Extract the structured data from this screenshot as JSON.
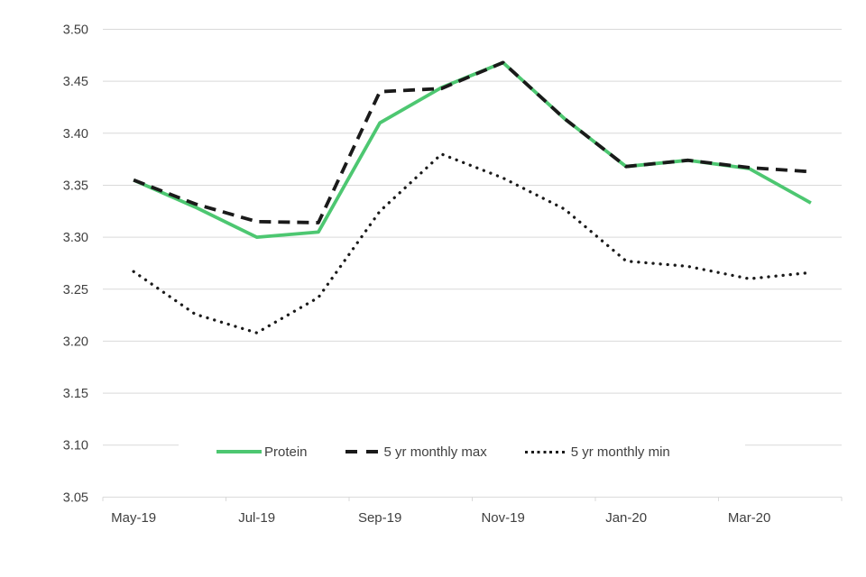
{
  "chart_data": {
    "type": "line",
    "title": "",
    "xlabel": "",
    "ylabel": "",
    "categories": [
      "May-19",
      "Jun-19",
      "Jul-19",
      "Aug-19",
      "Sep-19",
      "Oct-19",
      "Nov-19",
      "Dec-19",
      "Jan-20",
      "Feb-20",
      "Mar-20",
      "Apr-20"
    ],
    "series": [
      {
        "name": "Protein",
        "style": "solid",
        "color": "#4dc771",
        "values": [
          3.355,
          3.329,
          3.3,
          3.305,
          3.41,
          3.444,
          3.468,
          3.414,
          3.368,
          3.374,
          3.366,
          3.333
        ]
      },
      {
        "name": "5 yr monthly max",
        "style": "dashed",
        "color": "#1a1a1a",
        "values": [
          3.355,
          3.332,
          3.315,
          3.314,
          3.44,
          3.443,
          3.468,
          3.414,
          3.368,
          3.374,
          3.367,
          3.363
        ]
      },
      {
        "name": "5 yr monthly min",
        "style": "dotted",
        "color": "#1a1a1a",
        "values": [
          3.267,
          3.226,
          3.208,
          3.242,
          3.325,
          3.38,
          3.357,
          3.327,
          3.277,
          3.272,
          3.26,
          3.266
        ]
      }
    ],
    "ylim": [
      3.05,
      3.5
    ],
    "y_tick_labels": [
      "3.50",
      "3.45",
      "3.40",
      "3.35",
      "3.30",
      "3.25",
      "3.20",
      "3.15",
      "3.10",
      "3.05"
    ],
    "x_ticks": [
      {
        "label": "May-19",
        "index": 0
      },
      {
        "label": "Jul-19",
        "index": 2
      },
      {
        "label": "Sep-19",
        "index": 4
      },
      {
        "label": "Nov-19",
        "index": 6
      },
      {
        "label": "Jan-20",
        "index": 8
      },
      {
        "label": "Mar-20",
        "index": 10
      }
    ],
    "grid": "horizontal",
    "legend_position": "inside-bottom",
    "colors": {
      "grid": "#d9d9d9",
      "axis": "#d9d9d9",
      "tick_text": "#404040",
      "protein_green": "#4dc771",
      "line_black": "#1a1a1a"
    }
  }
}
